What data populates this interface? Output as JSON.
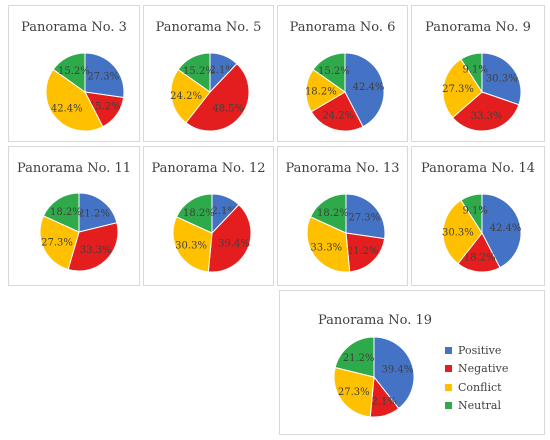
{
  "chart_data": [
    {
      "type": "pie",
      "title": "Panorama No. 3",
      "categories": [
        "Positive",
        "Negative",
        "Conflict",
        "Neutral"
      ],
      "values": [
        27.3,
        15.2,
        42.4,
        15.2
      ],
      "labels": [
        "27.3%",
        "15.2%",
        "42.4%",
        "15.2%"
      ]
    },
    {
      "type": "pie",
      "title": "Panorama No. 5",
      "categories": [
        "Positive",
        "Negative",
        "Conflict",
        "Neutral"
      ],
      "values": [
        12.1,
        48.5,
        24.2,
        15.2
      ],
      "labels": [
        "12.1%",
        "48.5%",
        "24.2%",
        "15.2%"
      ]
    },
    {
      "type": "pie",
      "title": "Panorama No. 6",
      "categories": [
        "Positive",
        "Negative",
        "Conflict",
        "Neutral"
      ],
      "values": [
        42.4,
        24.2,
        18.2,
        15.2
      ],
      "labels": [
        "42.4%",
        "24.2%",
        "18.2%",
        "15.2%"
      ]
    },
    {
      "type": "pie",
      "title": "Panorama No. 9",
      "categories": [
        "Positive",
        "Negative",
        "Conflict",
        "Neutral"
      ],
      "values": [
        30.3,
        33.3,
        27.3,
        9.1
      ],
      "labels": [
        "30.3%",
        "33.3%",
        "27.3%",
        "9.1%"
      ]
    },
    {
      "type": "pie",
      "title": "Panorama No. 11",
      "categories": [
        "Positive",
        "Negative",
        "Conflict",
        "Neutral"
      ],
      "values": [
        21.2,
        33.3,
        27.3,
        18.2
      ],
      "labels": [
        "21.2%",
        "33.3%",
        "27.3%",
        "18.2%"
      ]
    },
    {
      "type": "pie",
      "title": "Panorama No. 12",
      "categories": [
        "Positive",
        "Negative",
        "Conflict",
        "Neutral"
      ],
      "values": [
        12.1,
        39.4,
        30.3,
        18.2
      ],
      "labels": [
        "12.1%",
        "39.4%",
        "30.3%",
        "18.2%"
      ]
    },
    {
      "type": "pie",
      "title": "Panorama No. 13",
      "categories": [
        "Positive",
        "Negative",
        "Conflict",
        "Neutral"
      ],
      "values": [
        27.3,
        21.2,
        33.3,
        18.2
      ],
      "labels": [
        "27.3%",
        "21.2%",
        "33.3%",
        "18.2%"
      ]
    },
    {
      "type": "pie",
      "title": "Panorama No. 14",
      "categories": [
        "Positive",
        "Negative",
        "Conflict",
        "Neutral"
      ],
      "values": [
        42.4,
        18.2,
        30.3,
        9.1
      ],
      "labels": [
        "42.4%",
        "18.2%",
        "30.3%",
        "9.1%"
      ]
    },
    {
      "type": "pie",
      "title": "Panorama No. 19",
      "categories": [
        "Positive",
        "Negative",
        "Conflict",
        "Neutral"
      ],
      "values": [
        39.4,
        12.1,
        27.3,
        21.2
      ],
      "labels": [
        "39.4%",
        "12.1%",
        "27.3%",
        "21.2%"
      ]
    }
  ],
  "legend": {
    "placement": "right",
    "items": [
      {
        "label": "Positive",
        "color": "#4472C4"
      },
      {
        "label": "Negative",
        "color": "#E41E1E"
      },
      {
        "label": "Conflict",
        "color": "#FFC000"
      },
      {
        "label": "Neutral",
        "color": "#2EAA4A"
      }
    ]
  }
}
